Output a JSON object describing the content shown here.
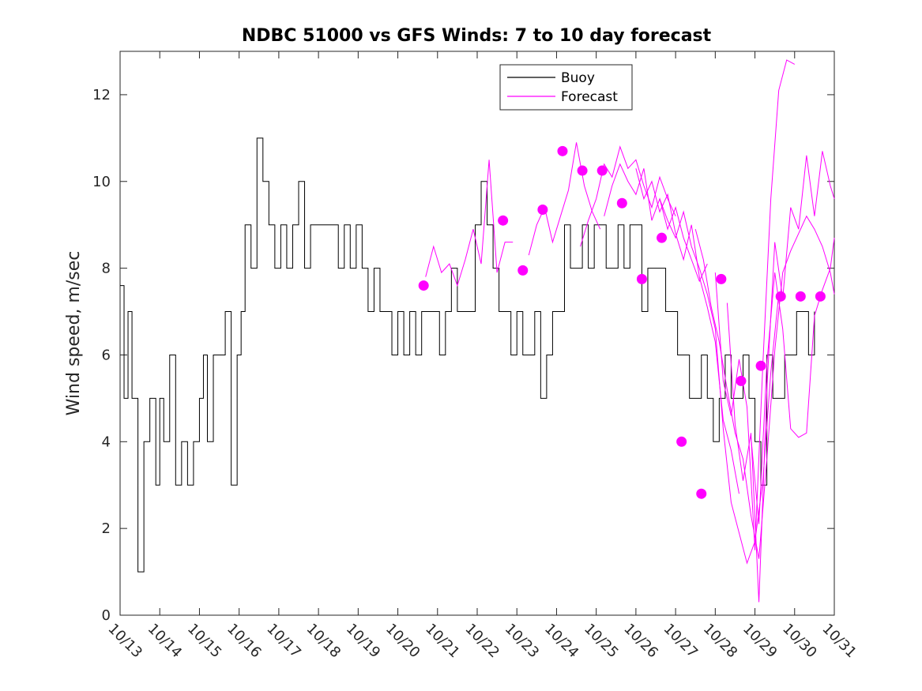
{
  "chart_data": {
    "type": "line",
    "title": "NDBC 51000 vs GFS Winds: 7 to 10 day forecast",
    "xlabel": "",
    "ylabel": "Wind speed, m/sec",
    "xlim": [
      0,
      18
    ],
    "ylim": [
      0,
      13
    ],
    "xtick_values": [
      0,
      1,
      2,
      3,
      4,
      5,
      6,
      7,
      8,
      9,
      10,
      11,
      12,
      13,
      14,
      15,
      16,
      17,
      18
    ],
    "xtick_labels": [
      "10/13",
      "10/14",
      "10/15",
      "10/16",
      "10/17",
      "10/18",
      "10/19",
      "10/20",
      "10/21",
      "10/22",
      "10/23",
      "10/24",
      "10/25",
      "10/26",
      "10/27",
      "10/28",
      "10/29",
      "10/30",
      "10/31"
    ],
    "ytick_values": [
      0,
      2,
      4,
      6,
      8,
      10,
      12
    ],
    "ytick_labels": [
      "0",
      "2",
      "4",
      "6",
      "8",
      "10",
      "12"
    ],
    "legend": {
      "position": "top-center",
      "entries": [
        "Buoy",
        "Forecast"
      ]
    },
    "colors": {
      "buoy": "#000000",
      "forecast": "#ff00ff",
      "markers": "#ff00ff"
    },
    "series": [
      {
        "name": "Buoy",
        "x": [
          0,
          0.1,
          0.2,
          0.3,
          0.45,
          0.6,
          0.75,
          0.9,
          1.0,
          1.1,
          1.25,
          1.4,
          1.55,
          1.7,
          1.85,
          2.0,
          2.1,
          2.2,
          2.35,
          2.5,
          2.65,
          2.8,
          2.95,
          3.05,
          3.15,
          3.3,
          3.45,
          3.6,
          3.75,
          3.9,
          4.05,
          4.2,
          4.35,
          4.5,
          4.65,
          4.8,
          4.95,
          5.05,
          5.2,
          5.35,
          5.5,
          5.65,
          5.8,
          5.95,
          6.1,
          6.25,
          6.4,
          6.55,
          6.7,
          6.85,
          7.0,
          7.15,
          7.3,
          7.45,
          7.6,
          7.75,
          7.9,
          8.05,
          8.2,
          8.35,
          8.5,
          8.65,
          8.8,
          8.95,
          9.1,
          9.25,
          9.4,
          9.55,
          9.7,
          9.85,
          10.0,
          10.15,
          10.3,
          10.45,
          10.6,
          10.75,
          10.9,
          11.05,
          11.2,
          11.35,
          11.5,
          11.65,
          11.8,
          11.95,
          12.1,
          12.25,
          12.4,
          12.55,
          12.7,
          12.85,
          13.0,
          13.15,
          13.3,
          13.45,
          13.6,
          13.75,
          13.9,
          14.05,
          14.2,
          14.35,
          14.5,
          14.65,
          14.8,
          14.95,
          15.1,
          15.25,
          15.4,
          15.55,
          15.7,
          15.85,
          16.0,
          16.15,
          16.3,
          16.45,
          16.6,
          16.75,
          16.9,
          17.05,
          17.2,
          17.35,
          17.5
        ],
        "y": [
          7.6,
          5,
          7,
          5,
          1,
          4,
          5,
          3,
          5,
          4,
          6,
          3,
          4,
          3,
          4,
          5,
          6,
          4,
          6,
          6,
          7,
          3,
          6,
          7,
          9,
          8,
          11,
          10,
          9,
          8,
          9,
          8,
          9,
          10,
          8,
          9,
          9,
          9,
          9,
          9,
          8,
          9,
          8,
          9,
          8,
          7,
          8,
          7,
          7,
          6,
          7,
          6,
          7,
          6,
          7,
          7,
          7,
          6,
          7,
          8,
          7,
          7,
          7,
          9,
          10,
          9,
          8,
          7,
          7,
          6,
          7,
          6,
          6,
          7,
          5,
          6,
          7,
          7,
          9,
          8,
          8,
          9,
          8,
          9,
          9,
          8,
          8,
          9,
          8,
          9,
          9,
          7,
          8,
          8,
          8,
          7,
          7,
          6,
          6,
          5,
          5,
          6,
          5,
          4,
          5,
          6,
          5,
          5,
          6,
          5,
          4,
          3,
          6,
          5,
          5,
          6,
          6,
          7,
          7,
          6,
          7
        ]
      },
      {
        "name": "Forecast",
        "segments": [
          {
            "x": [
              7.7,
              7.9,
              8.1,
              8.3,
              8.5,
              8.7,
              8.9,
              9.1,
              9.3,
              9.5,
              9.7,
              9.9
            ],
            "y": [
              7.8,
              8.5,
              7.9,
              8.1,
              7.6,
              8.2,
              8.9,
              8.1,
              10.5,
              7.9,
              8.6,
              8.6
            ]
          },
          {
            "x": [
              10.3,
              10.5,
              10.7,
              10.9,
              11.1,
              11.3,
              11.5,
              11.7,
              11.9,
              12.1
            ],
            "y": [
              8.3,
              9.0,
              9.4,
              8.6,
              9.2,
              9.8,
              10.9,
              9.9,
              9.3,
              8.9
            ]
          },
          {
            "x": [
              11.6,
              11.8,
              12.0,
              12.2,
              12.4,
              12.6,
              12.8,
              13.0,
              13.2,
              13.4,
              13.6,
              13.8,
              14.0
            ],
            "y": [
              8.5,
              9.1,
              9.6,
              10.4,
              10.1,
              10.8,
              10.3,
              10.5,
              9.9,
              9.4,
              10.1,
              9.6,
              9.2
            ]
          },
          {
            "x": [
              12.2,
              12.4,
              12.6,
              12.8,
              13.0,
              13.2,
              13.4,
              13.6,
              13.8,
              14.0,
              14.2,
              14.4,
              14.6,
              14.8
            ],
            "y": [
              9.2,
              9.9,
              10.4,
              10.0,
              9.7,
              10.3,
              9.1,
              9.6,
              8.9,
              9.4,
              8.7,
              8.2,
              7.7,
              8.1
            ]
          },
          {
            "x": [
              13.0,
              13.2,
              13.4,
              13.6,
              13.8,
              14.0,
              14.2,
              14.4,
              14.6,
              14.8,
              15.0,
              15.2,
              15.4,
              15.6
            ],
            "y": [
              10.3,
              9.6,
              10.0,
              9.3,
              9.7,
              8.8,
              8.2,
              9.0,
              7.8,
              7.1,
              6.3,
              4.5,
              3.8,
              2.8
            ]
          },
          {
            "x": [
              13.6,
              13.8,
              14.0,
              14.2,
              14.4,
              14.6,
              14.8,
              15.0,
              15.2,
              15.4,
              15.6,
              15.8,
              16.0,
              16.2,
              16.4,
              16.6
            ],
            "y": [
              9.6,
              9.1,
              8.7,
              9.3,
              8.5,
              8.0,
              7.4,
              6.6,
              4.3,
              2.6,
              1.9,
              1.2,
              1.7,
              3.1,
              5.6,
              7.4
            ]
          },
          {
            "x": [
              14.5,
              14.7,
              14.9,
              15.1,
              15.3,
              15.5,
              15.7,
              15.9,
              16.1,
              16.3,
              16.5,
              16.7,
              16.9,
              17.1,
              17.3,
              17.5,
              17.7,
              17.9,
              18.0
            ],
            "y": [
              8.9,
              8.2,
              7.1,
              6.3,
              5.2,
              4.2,
              3.6,
              2.3,
              1.3,
              3.6,
              6.1,
              7.9,
              8.4,
              8.8,
              9.2,
              8.9,
              8.5,
              7.9,
              7.4
            ]
          },
          {
            "x": [
              15.0,
              15.2,
              15.4,
              15.6,
              15.8,
              16.0,
              16.2,
              16.4,
              16.6,
              16.8,
              17.0
            ],
            "y": [
              7.9,
              5.4,
              4.6,
              5.9,
              4.8,
              1.5,
              5.8,
              9.6,
              12.1,
              12.8,
              12.7
            ]
          },
          {
            "x": [
              15.3,
              15.5,
              15.7,
              15.9,
              16.1,
              16.3,
              16.5,
              16.7,
              16.9,
              17.1,
              17.3,
              17.5,
              17.7,
              17.9,
              18.0
            ],
            "y": [
              7.2,
              4.4,
              3.1,
              4.2,
              0.3,
              5.2,
              8.6,
              7.3,
              9.4,
              8.9,
              10.6,
              9.2,
              10.7,
              9.9,
              9.6
            ]
          },
          {
            "x": [
              15.9,
              16.1,
              16.3,
              16.5,
              16.7,
              16.9,
              17.1,
              17.3,
              17.5,
              17.7,
              17.9,
              18.0
            ],
            "y": [
              4.1,
              2.1,
              5.8,
              7.9,
              6.6,
              4.3,
              4.1,
              4.2,
              6.9,
              7.5,
              8.0,
              8.7
            ]
          }
        ]
      },
      {
        "name": "Forecast markers",
        "type": "scatter",
        "x": [
          7.65,
          9.65,
          10.15,
          10.65,
          11.15,
          11.65,
          12.15,
          12.65,
          13.15,
          13.65,
          14.15,
          14.65,
          15.15,
          15.65,
          16.15,
          16.65,
          17.15,
          17.65
        ],
        "y": [
          7.6,
          9.1,
          7.95,
          9.35,
          10.7,
          10.25,
          10.25,
          9.5,
          7.75,
          8.7,
          4.0,
          2.8,
          7.75,
          5.4,
          5.75,
          7.35,
          7.35,
          7.35
        ]
      }
    ]
  }
}
